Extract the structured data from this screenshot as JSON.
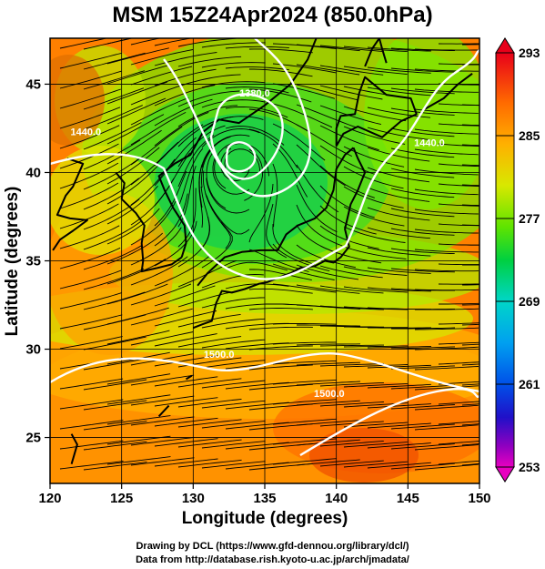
{
  "header": {
    "title": "MSM 15Z24Apr2024 (850.0hPa)"
  },
  "map": {
    "xlabel": "Longitude (degrees)",
    "ylabel": "Latitude  (degrees)",
    "x_range": [
      120,
      150
    ],
    "y_range": [
      22.4,
      47.6
    ],
    "x_ticks": [
      "120",
      "125",
      "130",
      "135",
      "140",
      "145",
      "150"
    ],
    "y_ticks": [
      "25",
      "30",
      "35",
      "40",
      "45"
    ],
    "contour_labels": [
      {
        "text": "1500.0",
        "lon": 131.8,
        "lat": 29.5
      },
      {
        "text": "1500.0",
        "lon": 139.5,
        "lat": 27.3
      },
      {
        "text": "1440.0",
        "lon": 122.5,
        "lat": 42.1
      },
      {
        "text": "1440.0",
        "lon": 146.5,
        "lat": 41.5
      },
      {
        "text": "1380.0",
        "lon": 134.3,
        "lat": 44.3
      }
    ]
  },
  "colorbar": {
    "ticks": [
      "293",
      "285",
      "277",
      "269",
      "261",
      "253"
    ],
    "range": [
      253,
      293
    ]
  },
  "footer": {
    "line1": "Drawing by DCL (https://www.gfd-dennou.org/library/dcl/)",
    "line2": "Data from http://database.rish.kyoto-u.ac.jp/arch/jmadata/"
  }
}
